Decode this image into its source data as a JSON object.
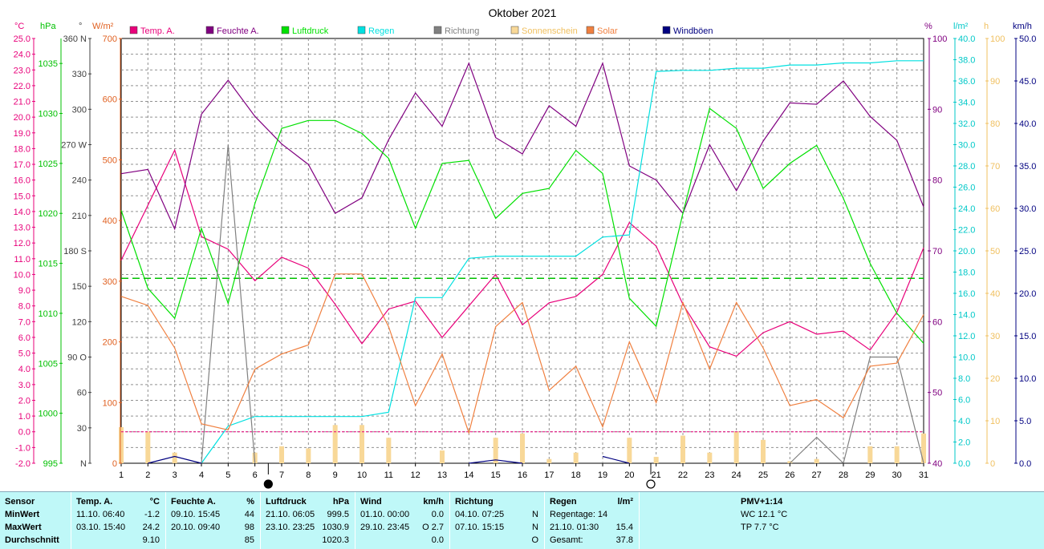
{
  "chart_data": {
    "type": "line",
    "title": "Oktober 2021",
    "x": [
      1,
      2,
      3,
      4,
      5,
      6,
      7,
      8,
      9,
      10,
      11,
      12,
      13,
      14,
      15,
      16,
      17,
      18,
      19,
      20,
      21,
      22,
      23,
      24,
      25,
      26,
      27,
      28,
      29,
      30,
      31
    ],
    "legend": [
      {
        "name": "Temp. A.",
        "color": "#e8007a"
      },
      {
        "name": "Feuchte A.",
        "color": "#800080"
      },
      {
        "name": "Luftdruck",
        "color": "#00e000"
      },
      {
        "name": "Regen",
        "color": "#00e0e0"
      },
      {
        "name": "Richtung",
        "color": "#808080"
      },
      {
        "name": "Sonnenschein",
        "color": "#f8d898"
      },
      {
        "name": "Solar",
        "color": "#f08040"
      },
      {
        "name": "Windböen",
        "color": "#000080"
      }
    ],
    "axes": {
      "temp": {
        "unit": "°C",
        "range": [
          -2,
          25
        ],
        "ticks": [
          "-2.0",
          "-1.0",
          "0.0",
          "1.0",
          "2.0",
          "3.0",
          "4.0",
          "5.0",
          "6.0",
          "7.0",
          "8.0",
          "9.0",
          "10.0",
          "11.0",
          "12.0",
          "13.0",
          "14.0",
          "15.0",
          "16.0",
          "17.0",
          "18.0",
          "19.0",
          "20.0",
          "21.0",
          "22.0",
          "23.0",
          "24.0",
          "25.0"
        ],
        "color": "#e8007a"
      },
      "pressure": {
        "unit": "hPa",
        "range": [
          995,
          1037.5
        ],
        "ticks": [
          "995",
          "1000",
          "1005",
          "1010",
          "1015",
          "1020",
          "1025",
          "1030",
          "1035"
        ],
        "color": "#00c000"
      },
      "direction": {
        "unit": "°",
        "range": [
          0,
          360
        ],
        "ticks": [
          "N",
          "30",
          "60",
          "90 O",
          "120",
          "150",
          "180 S",
          "210",
          "240",
          "270 W",
          "300",
          "330",
          "360 N"
        ],
        "color": "#404040"
      },
      "solar": {
        "unit": "W/m²",
        "range": [
          0,
          700
        ],
        "ticks": [
          "0",
          "100",
          "200",
          "300",
          "400",
          "500",
          "600",
          "700"
        ],
        "color": "#e06020"
      },
      "humidity": {
        "unit": "%",
        "range": [
          40,
          100
        ],
        "ticks": [
          "40",
          "50",
          "60",
          "70",
          "80",
          "90",
          "100"
        ],
        "color": "#800080"
      },
      "rain": {
        "unit": "l/m²",
        "range": [
          0,
          40
        ],
        "ticks": [
          "0.0",
          "2.0",
          "4.0",
          "6.0",
          "8.0",
          "10.0",
          "12.0",
          "14.0",
          "16.0",
          "18.0",
          "20.0",
          "22.0",
          "24.0",
          "26.0",
          "28.0",
          "30.0",
          "32.0",
          "34.0",
          "36.0",
          "38.0",
          "40.0"
        ],
        "color": "#00c8c8"
      },
      "sunshine": {
        "unit": "h",
        "range": [
          0,
          100
        ],
        "ticks": [
          "0",
          "10",
          "20",
          "30",
          "40",
          "50",
          "60",
          "70",
          "80",
          "90",
          "100"
        ],
        "color": "#f0c060"
      },
      "wind": {
        "unit": "km/h",
        "range": [
          0,
          50
        ],
        "ticks": [
          "0.0",
          "5.0",
          "10.0",
          "15.0",
          "20.0",
          "25.0",
          "30.0",
          "35.0",
          "40.0",
          "45.0",
          "50.0"
        ],
        "color": "#000080"
      }
    },
    "series": [
      {
        "name": "Temp. A.",
        "axis": "temp",
        "color": "#e8007a",
        "values": [
          10.9,
          14.4,
          17.9,
          12.4,
          11.6,
          9.6,
          11.1,
          10.4,
          8.1,
          5.6,
          7.8,
          8.3,
          6.0,
          8.0,
          10.0,
          6.8,
          8.2,
          8.6,
          10.0,
          13.3,
          11.8,
          8.1,
          5.4,
          4.8,
          6.3,
          7.0,
          6.2,
          6.4,
          5.2,
          7.6,
          11.7
        ],
        "style": "solid"
      },
      {
        "name": "Feuchte A.",
        "axis": "humidity",
        "color": "#800080",
        "values": [
          80.9,
          81.5,
          73.1,
          89.3,
          94.1,
          89.0,
          85.1,
          82.2,
          75.3,
          77.5,
          85.7,
          92.3,
          87.6,
          96.5,
          86.0,
          83.7,
          90.5,
          87.6,
          96.5,
          82.0,
          80.0,
          75.3,
          85.0,
          78.5,
          85.5,
          90.9,
          90.7,
          94.0,
          89.0,
          85.6,
          76.2
        ],
        "style": "solid"
      },
      {
        "name": "Luftdruck",
        "axis": "pressure",
        "color": "#00e000",
        "values": [
          1020.3,
          1012.5,
          1009.5,
          1018.5,
          1011.0,
          1021.0,
          1028.5,
          1029.3,
          1029.3,
          1028.0,
          1025.5,
          1018.5,
          1025.0,
          1025.3,
          1019.5,
          1022.0,
          1022.5,
          1026.3,
          1024.0,
          1011.5,
          1008.7,
          1020.0,
          1030.5,
          1028.5,
          1022.5,
          1025.0,
          1026.8,
          1021.5,
          1015.0,
          1010.0,
          1007.0
        ],
        "style": "solid"
      },
      {
        "name": "Luftdruck Mittel",
        "axis": "pressure",
        "color": "#00c000",
        "values": [
          1013.5,
          1013.5,
          1013.5,
          1013.5,
          1013.5,
          1013.5,
          1013.5,
          1013.5,
          1013.5,
          1013.5,
          1013.5,
          1013.5,
          1013.5,
          1013.5,
          1013.5,
          1013.5,
          1013.5,
          1013.5,
          1013.5,
          1013.5,
          1013.5,
          1013.5,
          1013.5,
          1013.5,
          1013.5,
          1013.5,
          1013.5,
          1013.5,
          1013.5,
          1013.5,
          1013.5
        ],
        "style": "dashed"
      },
      {
        "name": "Regen",
        "axis": "rain",
        "color": "#00e0e0",
        "values": [
          null,
          null,
          null,
          0.0,
          3.5,
          4.4,
          4.4,
          4.4,
          4.4,
          4.4,
          4.8,
          15.6,
          15.6,
          19.3,
          19.5,
          19.5,
          19.5,
          19.5,
          21.3,
          21.5,
          36.9,
          37.0,
          37.0,
          37.2,
          37.2,
          37.5,
          37.5,
          37.7,
          37.7,
          37.9,
          37.9
        ],
        "style": "solid"
      },
      {
        "name": "Richtung",
        "axis": "direction",
        "color": "#808080",
        "values": [
          null,
          null,
          null,
          0,
          270,
          0,
          null,
          null,
          null,
          null,
          null,
          null,
          null,
          null,
          null,
          null,
          null,
          null,
          null,
          null,
          null,
          null,
          null,
          null,
          null,
          0,
          22,
          0,
          90,
          90,
          0
        ],
        "style": "solid"
      },
      {
        "name": "Solar",
        "axis": "solid",
        "color": "#f08040",
        "values": [
          275,
          260,
          190,
          65,
          55,
          155,
          180,
          195,
          312,
          312,
          225,
          95,
          180,
          50,
          225,
          265,
          120,
          160,
          60,
          200,
          100,
          265,
          155,
          265,
          190,
          95,
          105,
          75,
          160,
          165,
          245
        ],
        "style": "solid"
      },
      {
        "name": "Windböen",
        "axis": "wind",
        "color": "#000080",
        "values": [
          null,
          0.0,
          0.8,
          0.0,
          null,
          null,
          null,
          null,
          null,
          null,
          null,
          null,
          null,
          0.0,
          0.4,
          0.0,
          null,
          null,
          0.8,
          0.0,
          null,
          null,
          null,
          null,
          null,
          null,
          null,
          null,
          null,
          null,
          null
        ],
        "style": "solid"
      },
      {
        "name": "Sonnenschein",
        "axis": "sunshine",
        "color": "#f8d898",
        "type": "bar",
        "values": [
          8.5,
          7.5,
          2.5,
          0,
          0,
          2.5,
          4,
          3.5,
          9,
          9,
          6,
          0,
          3,
          0,
          6,
          7,
          1,
          2.5,
          0,
          6,
          1.5,
          6.5,
          2.5,
          7.5,
          5.5,
          0.5,
          1,
          0,
          4,
          4,
          7
        ],
        "style": "bar"
      }
    ],
    "reference_lines": [
      {
        "axis": "temp",
        "value": 0.0,
        "color": "#e8007a",
        "style": "dashed"
      }
    ],
    "xlim": [
      1,
      31
    ],
    "grid": true,
    "markers": [
      {
        "x": 6.5,
        "symbol": "full-moon"
      },
      {
        "x": 20.8,
        "symbol": "new-moon"
      }
    ]
  },
  "header_units": {
    "temp_unit": "°C",
    "pressure_unit": "hPa",
    "direction_unit": "°",
    "solar_unit": "W/m²",
    "humidity_unit": "%",
    "rain_unit": "l/m²",
    "sunshine_unit": "h",
    "wind_unit": "km/h"
  },
  "stats": {
    "sensor": {
      "header": "Sensor",
      "rows": [
        "MinWert",
        "MaxWert",
        "Durchschnitt"
      ]
    },
    "temp": {
      "header": "Temp. A.",
      "unit": "°C",
      "rows": [
        [
          "11.10.  06:40",
          "-1.2"
        ],
        [
          "03.10.  15:40",
          "24.2"
        ],
        [
          "",
          "9.10"
        ]
      ]
    },
    "humidity": {
      "header": "Feuchte A.",
      "unit": "%",
      "rows": [
        [
          "09.10.  15:45",
          "44"
        ],
        [
          "20.10.  09:40",
          "98"
        ],
        [
          "",
          "85"
        ]
      ]
    },
    "pressure": {
      "header": "Luftdruck",
      "unit": "hPa",
      "rows": [
        [
          "21.10.  06:05",
          "999.5"
        ],
        [
          "23.10.  23:25",
          "1030.9"
        ],
        [
          "",
          "1020.3"
        ]
      ]
    },
    "wind": {
      "header": "Wind",
      "unit": "km/h",
      "rows": [
        [
          "01.10.  00:00",
          "0.0"
        ],
        [
          "29.10.  23:45",
          "O  2.7"
        ],
        [
          "",
          "0.0"
        ]
      ]
    },
    "direction": {
      "header": "Richtung",
      "unit": "",
      "rows": [
        [
          "04.10.  07:25",
          "N"
        ],
        [
          "07.10.  15:15",
          "N"
        ],
        [
          "",
          "O"
        ]
      ]
    },
    "rain": {
      "header": "Regen",
      "unit": "l/m²",
      "rows": [
        [
          "Regentage: 14",
          ""
        ],
        [
          "21.10.  01:30",
          "15.4"
        ],
        [
          "Gesamt:",
          "37.8"
        ]
      ]
    },
    "pmv": {
      "header": "PMV+1:14",
      "rows": [
        "WC 12.1 °C",
        "TP 7.7 °C"
      ]
    }
  }
}
